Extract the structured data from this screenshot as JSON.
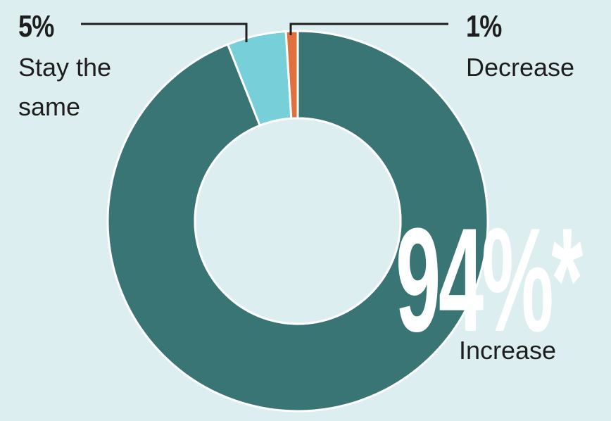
{
  "chart_data": {
    "type": "pie",
    "variant": "donut",
    "slices": [
      {
        "label": "Increase",
        "value": 94,
        "display": "94%*",
        "color": "#397574"
      },
      {
        "label": "Stay the same",
        "value": 5,
        "display": "5%",
        "color": "#76cfd9"
      },
      {
        "label": "Decrease",
        "value": 1,
        "display": "1%",
        "color": "#e0703e"
      }
    ]
  },
  "labels": {
    "stay_pct": "5%",
    "stay_line1": "Stay the",
    "stay_line2": "same",
    "decrease_pct": "1%",
    "decrease_text": "Decrease",
    "increase_pct": "94%*",
    "increase_text": "Increase"
  }
}
